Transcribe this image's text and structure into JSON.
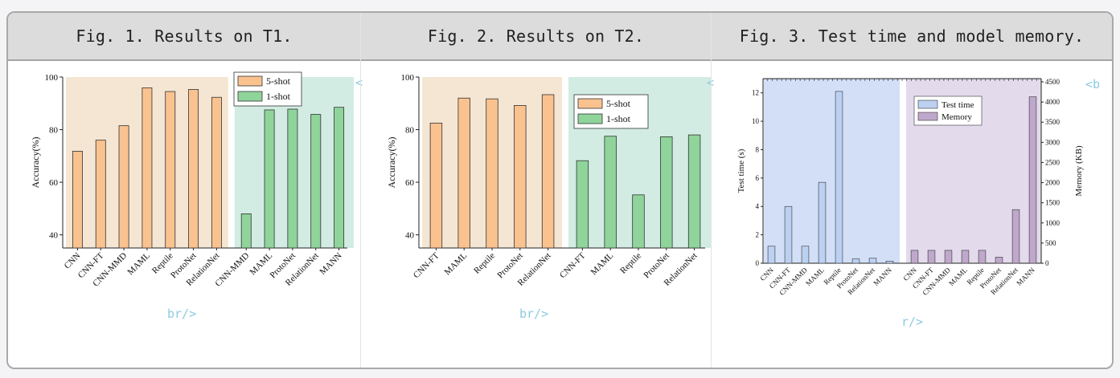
{
  "panels": [
    {
      "title": "Fig. 1. Results on T1.",
      "stray_top": "<",
      "stray_bottom": "br/>"
    },
    {
      "title": "Fig. 2. Results on T2.",
      "stray_top": "<",
      "stray_bottom": "br/>"
    },
    {
      "title": "Fig. 3. Test time and model memory.",
      "stray_top": "<b",
      "stray_bottom": "r/>"
    }
  ],
  "colors": {
    "five_shot": "#f9c28f",
    "one_shot": "#8fd49b",
    "bg_five": "#f5e6d3",
    "bg_one": "#d2ece3",
    "test_time": "#bcd1f2",
    "memory": "#bfa8cb",
    "bg_time": "#d2dff7",
    "bg_mem": "#e3dbeb"
  },
  "chart_data": [
    {
      "type": "bar",
      "ylabel": "Accuracy(%)",
      "ylim": [
        35,
        100
      ],
      "yticks": [
        40,
        60,
        80,
        100
      ],
      "legend": [
        "5-shot",
        "1-shot"
      ],
      "legend_position": "top-right",
      "series": [
        {
          "name": "5-shot",
          "categories": [
            "CNN",
            "CNN-FT",
            "CNN-MMD",
            "MAML",
            "Reptile",
            "ProtoNet",
            "RelationNet"
          ],
          "values": [
            71.8,
            76.0,
            81.5,
            95.9,
            94.5,
            95.3,
            92.3
          ]
        },
        {
          "name": "1-shot",
          "categories": [
            "CNN-MMD",
            "MAML",
            "ProtoNet",
            "RelationNet",
            "MANN"
          ],
          "values": [
            48.0,
            87.5,
            87.8,
            85.8,
            88.5
          ]
        }
      ]
    },
    {
      "type": "bar",
      "ylabel": "Accuracy(%)",
      "ylim": [
        35,
        100
      ],
      "yticks": [
        40,
        60,
        80,
        100
      ],
      "legend": [
        "5-shot",
        "1-shot"
      ],
      "legend_position": "top-right",
      "series": [
        {
          "name": "5-shot",
          "categories": [
            "CNN-FT",
            "MAML",
            "Reptile",
            "ProtoNet",
            "RelationNet"
          ],
          "values": [
            82.5,
            92.0,
            91.7,
            89.2,
            93.3
          ]
        },
        {
          "name": "1-shot",
          "categories": [
            "CNN-FT",
            "MAML",
            "Reptile",
            "ProtoNet",
            "RelationNet"
          ],
          "values": [
            68.2,
            77.5,
            55.2,
            77.3,
            78.0
          ]
        }
      ]
    },
    {
      "type": "bar",
      "ylabel": "Test time (s)",
      "y2label": "Memory (KB)",
      "ylim": [
        0,
        13
      ],
      "yticks": [
        0,
        2,
        4,
        6,
        8,
        10,
        12
      ],
      "y2lim": [
        0,
        4500
      ],
      "y2ticks": [
        0,
        500,
        1000,
        1500,
        2000,
        2500,
        3000,
        3500,
        4000,
        4500
      ],
      "legend": [
        "Test time",
        "Memory"
      ],
      "legend_position": "top-right",
      "series": [
        {
          "name": "Test time",
          "categories": [
            "CNN",
            "CNN-FT",
            "CNN-MMD",
            "MAML",
            "Reptile",
            "ProtoNet",
            "RelationNet",
            "MANN"
          ],
          "values": [
            1.2,
            4.0,
            1.2,
            5.7,
            12.1,
            0.3,
            0.35,
            0.15
          ]
        },
        {
          "name": "Memory",
          "categories": [
            "CNN",
            "CNN-FT",
            "CNN-MMD",
            "MAML",
            "Reptile",
            "ProtoNet",
            "RelationNet",
            "MANN"
          ],
          "values": [
            320,
            320,
            320,
            320,
            320,
            150,
            1330,
            4130
          ]
        }
      ]
    }
  ]
}
